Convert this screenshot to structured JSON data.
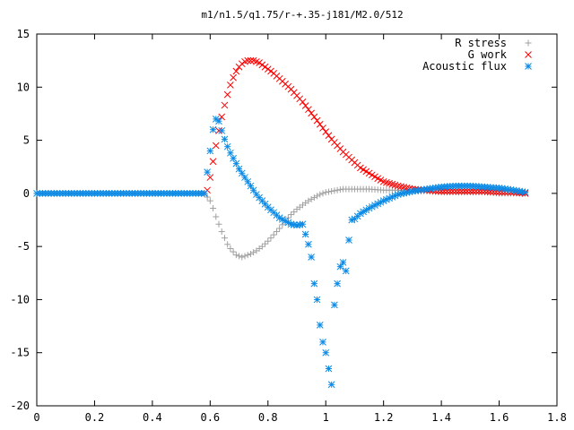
{
  "chart_data": {
    "type": "scatter",
    "title": "m1/n1.5/q1.75/r-+.35-j181/M2.0/512",
    "xlabel": "",
    "ylabel": "",
    "xlim": [
      0,
      1.8
    ],
    "ylim": [
      -20,
      15
    ],
    "xticks": [
      "0",
      "0.2",
      "0.4",
      "0.6",
      "0.8",
      "1",
      "1.2",
      "1.4",
      "1.6",
      "1.8"
    ],
    "yticks": [
      "15",
      "10",
      "5",
      "0",
      "-5",
      "-10",
      "-15",
      "-20"
    ],
    "grid": false,
    "legend_position": "top-right",
    "series": [
      {
        "name": "R stress",
        "marker": "plus",
        "color": "#a0a0a0",
        "x": [
          0,
          0.1,
          0.2,
          0.3,
          0.4,
          0.5,
          0.58,
          0.6,
          0.61,
          0.62,
          0.63,
          0.64,
          0.65,
          0.66,
          0.67,
          0.68,
          0.69,
          0.7,
          0.71,
          0.72,
          0.74,
          0.76,
          0.78,
          0.8,
          0.82,
          0.84,
          0.86,
          0.88,
          0.9,
          0.92,
          0.94,
          0.96,
          0.98,
          1.0,
          1.02,
          1.04,
          1.06,
          1.08,
          1.1,
          1.15,
          1.2,
          1.25,
          1.3,
          1.35,
          1.4,
          1.45,
          1.5,
          1.55,
          1.6,
          1.65,
          1.69
        ],
        "y": [
          0,
          0,
          0,
          0,
          0,
          0,
          0,
          -0.7,
          -1.4,
          -2.2,
          -2.9,
          -3.6,
          -4.2,
          -4.8,
          -5.2,
          -5.5,
          -5.8,
          -5.9,
          -6.0,
          -5.9,
          -5.7,
          -5.4,
          -5.0,
          -4.5,
          -3.9,
          -3.3,
          -2.6,
          -2.0,
          -1.5,
          -1.1,
          -0.7,
          -0.4,
          -0.1,
          0.1,
          0.2,
          0.3,
          0.4,
          0.4,
          0.4,
          0.4,
          0.3,
          0.3,
          0.2,
          0.2,
          0.1,
          0.1,
          0.1,
          0.1,
          0,
          0,
          0
        ]
      },
      {
        "name": "G work",
        "marker": "cross",
        "color": "#ff0000",
        "x": [
          0.58,
          0.59,
          0.6,
          0.61,
          0.62,
          0.63,
          0.64,
          0.65,
          0.66,
          0.67,
          0.68,
          0.69,
          0.7,
          0.71,
          0.72,
          0.73,
          0.74,
          0.75,
          0.76,
          0.77,
          0.78,
          0.8,
          0.82,
          0.84,
          0.86,
          0.88,
          0.9,
          0.92,
          0.94,
          0.96,
          0.98,
          1.0,
          1.02,
          1.04,
          1.06,
          1.08,
          1.1,
          1.12,
          1.15,
          1.18,
          1.2,
          1.25,
          1.3,
          1.35,
          1.4,
          1.45,
          1.5,
          1.55,
          1.6,
          1.65,
          1.69
        ],
        "y": [
          0,
          0.3,
          1.5,
          3.0,
          4.5,
          5.9,
          7.2,
          8.3,
          9.3,
          10.2,
          10.9,
          11.5,
          11.9,
          12.2,
          12.4,
          12.5,
          12.5,
          12.5,
          12.4,
          12.3,
          12.1,
          11.7,
          11.3,
          10.8,
          10.3,
          9.8,
          9.2,
          8.6,
          7.9,
          7.2,
          6.5,
          5.8,
          5.1,
          4.5,
          3.9,
          3.4,
          2.9,
          2.4,
          1.9,
          1.4,
          1.1,
          0.7,
          0.4,
          0.3,
          0.2,
          0.2,
          0.2,
          0.2,
          0.1,
          0.1,
          0
        ]
      },
      {
        "name": "Acoustic flux",
        "marker": "star",
        "color": "#0a8ae6",
        "x": [
          0,
          0.05,
          0.1,
          0.15,
          0.2,
          0.25,
          0.3,
          0.35,
          0.4,
          0.45,
          0.5,
          0.55,
          0.58,
          0.59,
          0.6,
          0.61,
          0.62,
          0.63,
          0.64,
          0.65,
          0.66,
          0.67,
          0.68,
          0.7,
          0.72,
          0.74,
          0.76,
          0.78,
          0.8,
          0.82,
          0.84,
          0.86,
          0.88,
          0.9,
          0.92,
          0.94,
          0.95,
          0.96,
          0.97,
          0.98,
          0.99,
          1.0,
          1.01,
          1.02,
          1.03,
          1.04,
          1.05,
          1.06,
          1.07,
          1.08,
          1.09,
          1.1,
          1.12,
          1.15,
          1.2,
          1.25,
          1.3,
          1.35,
          1.4,
          1.45,
          1.5,
          1.55,
          1.6,
          1.65,
          1.69
        ],
        "y": [
          0,
          0,
          0,
          0,
          0,
          0,
          0,
          0,
          0,
          0,
          0,
          0,
          0,
          2,
          4,
          6,
          7,
          6.8,
          5.9,
          5.1,
          4.4,
          3.8,
          3.3,
          2.3,
          1.5,
          0.7,
          -0.1,
          -0.7,
          -1.3,
          -1.8,
          -2.3,
          -2.6,
          -2.9,
          -3.0,
          -2.9,
          -4.8,
          -6,
          -8.5,
          -10,
          -12.4,
          -14,
          -15,
          -16.5,
          -18,
          -10.5,
          -8.5,
          -6.9,
          -6.5,
          -7.3,
          -4.4,
          -2.5,
          -2.4,
          -1.9,
          -1.4,
          -0.7,
          -0.1,
          0.2,
          0.4,
          0.6,
          0.7,
          0.7,
          0.6,
          0.5,
          0.3,
          0.1
        ]
      }
    ]
  }
}
